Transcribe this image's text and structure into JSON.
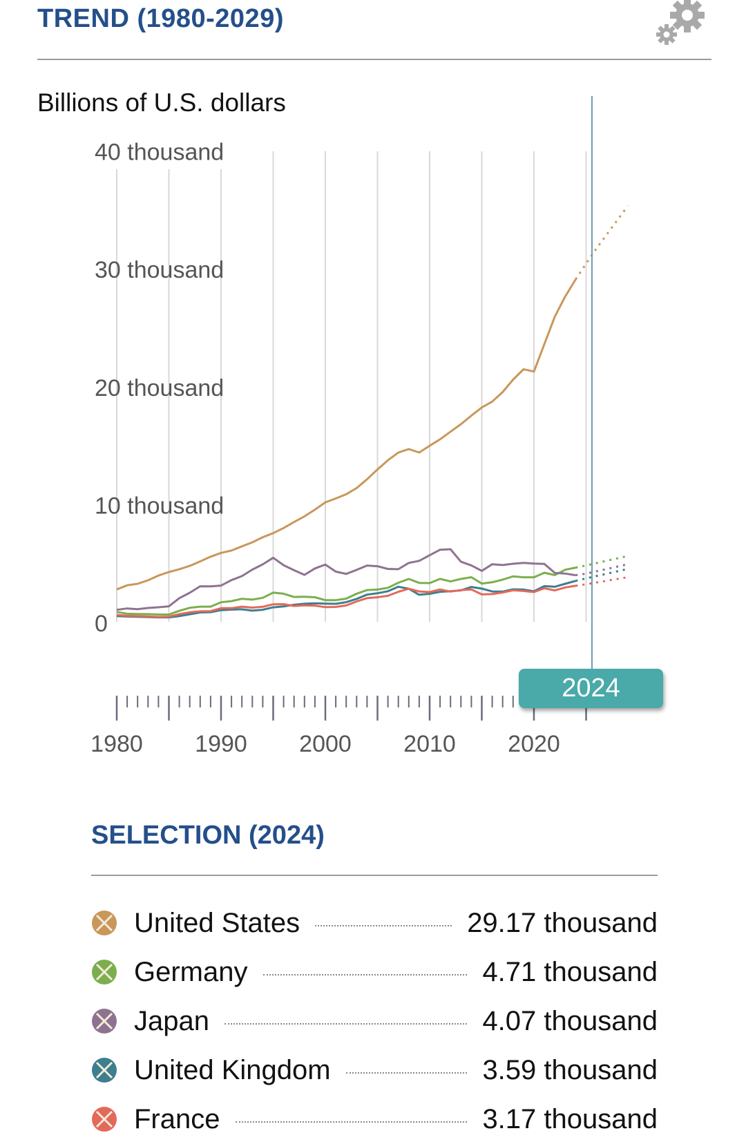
{
  "header": {
    "title": "TREND (1980-2029)",
    "settings_icon": "gear-icon"
  },
  "selection": {
    "title": "SELECTION (2024)",
    "items": [
      {
        "name": "United States",
        "value": "29.17 thousand",
        "color": "#c9975a",
        "icon": "x-circle-icon"
      },
      {
        "name": "Germany",
        "value": "4.71 thousand",
        "color": "#7cae4e",
        "icon": "x-circle-icon"
      },
      {
        "name": "Japan",
        "value": "4.07 thousand",
        "color": "#8e7391",
        "icon": "x-circle-icon"
      },
      {
        "name": "United Kingdom",
        "value": "3.59 thousand",
        "color": "#3d7e8f",
        "icon": "x-circle-icon"
      },
      {
        "name": "France",
        "value": "3.17 thousand",
        "color": "#e4695a",
        "icon": "x-circle-icon"
      }
    ]
  },
  "tooltip": {
    "year_label": "2024",
    "color": "#4aa9a9"
  },
  "chart_data": {
    "type": "line",
    "ylabel": "Billions of U.S. dollars",
    "ylim": [
      0,
      40000
    ],
    "y_ticks": [
      0,
      10000,
      20000,
      30000,
      40000
    ],
    "y_tick_labels": [
      "0",
      "10 thousand",
      "20 thousand",
      "30 thousand",
      "40 thousand"
    ],
    "xlim": [
      1980,
      2029
    ],
    "x_tick_labels": [
      "1980",
      "1990",
      "2000",
      "2010",
      "2020"
    ],
    "x_ticks": [
      1980,
      1990,
      2000,
      2010,
      2020
    ],
    "selected_year": 2024,
    "actual_years": [
      1980,
      2024
    ],
    "projection_years": [
      2025,
      2029
    ],
    "grid": "vertical every 5 years",
    "series": [
      {
        "name": "United States",
        "color": "#c9975a",
        "values": [
          2860,
          3210,
          3340,
          3640,
          4040,
          4340,
          4580,
          4860,
          5240,
          5640,
          5960,
          6160,
          6520,
          6860,
          7290,
          7640,
          8070,
          8580,
          9060,
          9630,
          10250,
          10580,
          10940,
          11460,
          12210,
          13040,
          13820,
          14470,
          14770,
          14480,
          15050,
          15600,
          16250,
          16880,
          17610,
          18300,
          18800,
          19610,
          20660,
          21540,
          21350,
          23680,
          26010,
          27720,
          29170
        ],
        "projection": [
          30500,
          31800,
          33000,
          34200,
          35400
        ]
      },
      {
        "name": "Germany",
        "color": "#7cae4e",
        "values": [
          950,
          800,
          780,
          770,
          730,
          730,
          1050,
          1300,
          1400,
          1400,
          1770,
          1870,
          2070,
          2000,
          2150,
          2590,
          2500,
          2220,
          2240,
          2200,
          1950,
          1950,
          2080,
          2500,
          2810,
          2850,
          3000,
          3430,
          3750,
          3420,
          3400,
          3760,
          3540,
          3750,
          3900,
          3360,
          3470,
          3690,
          3970,
          3890,
          3890,
          4280,
          4080,
          4530,
          4710
        ],
        "projection": [
          4900,
          5100,
          5300,
          5500,
          5700
        ]
      },
      {
        "name": "Japan",
        "color": "#8e7391",
        "values": [
          1130,
          1250,
          1190,
          1290,
          1350,
          1430,
          2120,
          2580,
          3130,
          3120,
          3190,
          3650,
          3990,
          4540,
          4990,
          5550,
          4920,
          4490,
          4100,
          4640,
          4970,
          4370,
          4180,
          4520,
          4890,
          4830,
          4600,
          4580,
          5110,
          5290,
          5760,
          6230,
          6270,
          5210,
          4900,
          4440,
          5000,
          4930,
          5040,
          5120,
          5050,
          5030,
          4260,
          4210,
          4070
        ],
        "projection": [
          4200,
          4400,
          4600,
          4800,
          5000
        ]
      },
      {
        "name": "United Kingdom",
        "color": "#3d7e8f",
        "values": [
          600,
          560,
          540,
          520,
          490,
          490,
          600,
          750,
          910,
          930,
          1100,
          1150,
          1180,
          1060,
          1140,
          1340,
          1420,
          1560,
          1650,
          1680,
          1660,
          1640,
          1780,
          2060,
          2420,
          2540,
          2710,
          3090,
          2920,
          2410,
          2490,
          2660,
          2710,
          2780,
          3070,
          2930,
          2690,
          2680,
          2870,
          2850,
          2700,
          3140,
          3090,
          3340,
          3590
        ],
        "projection": [
          3800,
          4000,
          4200,
          4400,
          4600
        ]
      },
      {
        "name": "France",
        "color": "#e4695a",
        "values": [
          700,
          620,
          600,
          570,
          530,
          550,
          770,
          920,
          1000,
          1020,
          1270,
          1270,
          1400,
          1320,
          1390,
          1600,
          1610,
          1460,
          1510,
          1490,
          1360,
          1380,
          1500,
          1840,
          2120,
          2200,
          2320,
          2660,
          2920,
          2690,
          2640,
          2860,
          2680,
          2810,
          2860,
          2440,
          2470,
          2600,
          2790,
          2730,
          2640,
          2960,
          2780,
          3030,
          3170
        ],
        "projection": [
          3300,
          3450,
          3600,
          3750,
          3900
        ]
      }
    ]
  }
}
